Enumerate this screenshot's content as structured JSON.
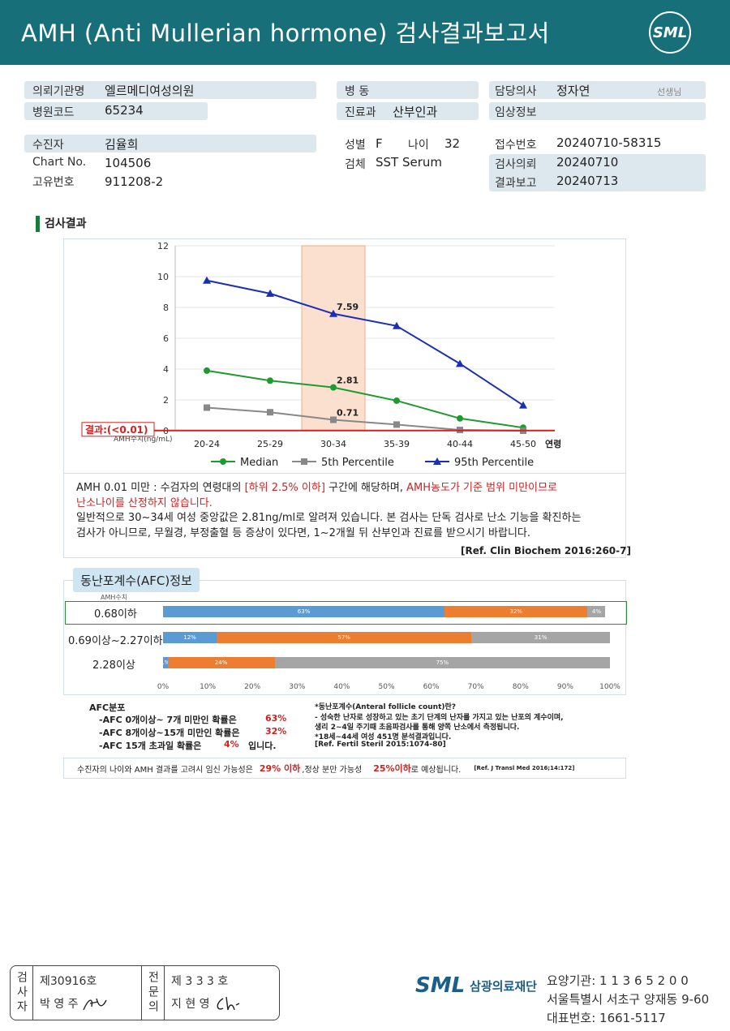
{
  "header": {
    "title": "AMH (Anti Mullerian hormone) 검사결과보고서",
    "logo_text": "SML"
  },
  "info": {
    "institution_label": "의뢰기관명",
    "institution": "엘르메디여성의원",
    "hospital_code_label": "병원코드",
    "hospital_code": "65234",
    "ward_label": "병 동",
    "ward": "",
    "department_label": "진료과",
    "department": "산부인과",
    "doctor_label": "담당의사",
    "doctor": "정자연",
    "doctor_suffix": "선생님",
    "clinical_label": "임상정보",
    "clinical": "",
    "patient_label": "수진자",
    "patient": "김율희",
    "chart_label": "Chart No.",
    "chart": "104506",
    "unique_label": "고유번호",
    "unique": "911208-2",
    "sex_label": "성별",
    "sex": "F",
    "age_label": "나이",
    "age": "32",
    "specimen_label": "검체",
    "specimen": "SST Serum",
    "receipt_label": "접수번호",
    "receipt": "20240710-58315",
    "request_label": "검사의뢰",
    "request": "20240710",
    "report_label": "결과보고",
    "report": "20240713"
  },
  "section_title": "검사결과",
  "chart_data": {
    "type": "line",
    "categories": [
      "20-24",
      "25-29",
      "30-34",
      "35-39",
      "40-44",
      "45-50"
    ],
    "xlabel": "연령",
    "ylabel": "AMH수치(ng/mL)",
    "ylim": [
      0,
      12
    ],
    "yticks": [
      0,
      2,
      4,
      6,
      8,
      10,
      12
    ],
    "highlight_category": "30-34",
    "result_label": "결과:(<0.01)",
    "result_value": 0.01,
    "series": [
      {
        "name": "Median",
        "color": "#1e9b2e",
        "marker": "circle",
        "values": [
          3.9,
          3.25,
          2.81,
          1.95,
          0.8,
          0.2
        ]
      },
      {
        "name": "5th Percentile",
        "color": "#888888",
        "marker": "square",
        "values": [
          1.5,
          1.2,
          0.71,
          0.4,
          0.05,
          0.0
        ]
      },
      {
        "name": "95th Percentile",
        "color": "#1a2fb5",
        "marker": "triangle",
        "values": [
          9.75,
          8.9,
          7.59,
          6.8,
          4.35,
          1.65
        ]
      }
    ],
    "annotations": [
      "7.59",
      "2.81",
      "0.71"
    ],
    "legend_position": "bottom"
  },
  "notes": {
    "line1_a": "AMH   0.01 미만 : 수검자의 연령대의 ",
    "line1_b": "[하위 2.5% 이하]",
    "line1_c": " 구간에 해당하며, ",
    "line1_d": "AMH농도가 기준 범위 미만이므로",
    "line2": "난소나이를 산정하지 않습니다.",
    "line3": "일반적으로 30~34세 여성 중앙값은 2.81ng/ml로 알려져 있습니다. 본 검사는 단독 검사로 난소 기능을 확진하는",
    "line4": "검사가 아니므로, 무월경, 부정출혈 등 증상이 있다면, 1~2개월 뒤 산부인과 진료를 받으시기 바랍니다.",
    "ref": "[Ref. Clin Biochem 2016:260-7]"
  },
  "afc": {
    "tab": "동난포계수(AFC)정보",
    "head": "AMH수치",
    "rows": [
      {
        "label": "0.68이하",
        "segments": [
          63,
          32,
          4
        ],
        "seg_labels": [
          "63%",
          "32%",
          "4%"
        ]
      },
      {
        "label": "0.69이상~2.27이하",
        "segments": [
          12,
          57,
          31
        ],
        "seg_labels": [
          "12%",
          "57%",
          "31%"
        ]
      },
      {
        "label": "2.28이상",
        "segments": [
          1,
          24,
          75
        ],
        "seg_labels": [
          "1%",
          "24%",
          "75%"
        ]
      }
    ],
    "ticks": [
      "0%",
      "10%",
      "20%",
      "30%",
      "40%",
      "50%",
      "60%",
      "70%",
      "80%",
      "90%",
      "100%"
    ],
    "dist_title": "AFC분포",
    "dist1": "-AFC  0개이상~ 7개 미만인 확률은",
    "dist1_val": "63%",
    "dist2": "-AFC  8개이상~15개 미만인 확률은",
    "dist2_val": "32%",
    "dist3": "-AFC  15개 초과일 확률은",
    "dist3_val": "4%",
    "dist3_tail": "입니다.",
    "note1": "*동난포계수(Anteral  follicle  count)란?",
    "note2": "-  성숙한 난자로 성장하고 있는 초기 단계의 난자를 가지고 있는 난포의 계수이며,",
    "note3": "   생리 2~4일 주기때 초음파검사를 통해 양쪽 난소에서 측정됩니다.",
    "note4": "*18세~44세 여성 451명 분석결과입니다.",
    "note5": "[Ref. Fertil Steril 2015:1074-80]"
  },
  "bottom": {
    "a": "수진자의  나이와 AMH 결과를 고려시 임신 가능성은",
    "b": "29% 이하",
    "c": ",정상 분만 가능성",
    "d": "25%이하",
    "e": "로 예상됩니다.",
    "ref": "[Ref. J Transl Med 2016;14:172]"
  },
  "stamp": {
    "col1": "검사자",
    "row1a": "제30916호",
    "row1b": "박 영 주",
    "col2": "전문의",
    "row2a": "제 3 3 3 호",
    "row2b": "지 현 영"
  },
  "footer": {
    "logo_mark": "SML",
    "org_name": "삼광의료재단",
    "line1": "요양기관: 1 1 3 6 5 2 0 0",
    "line2": "서울특별시 서초구 양재동 9-60",
    "line3": "대표번호: 1661-5117"
  }
}
